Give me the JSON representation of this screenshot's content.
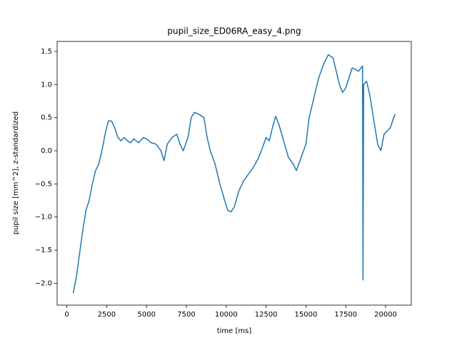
{
  "chart_data": {
    "type": "line",
    "title": "pupil_size_ED06RA_easy_4.png",
    "xlabel": "time [ms]",
    "ylabel": "pupil size [mm^2], z-standardized",
    "x": [
      400,
      600,
      800,
      1000,
      1200,
      1400,
      1600,
      1800,
      2000,
      2200,
      2400,
      2600,
      2800,
      3000,
      3200,
      3400,
      3600,
      3800,
      4000,
      4200,
      4500,
      4800,
      5000,
      5300,
      5600,
      5900,
      6100,
      6300,
      6600,
      6900,
      7100,
      7300,
      7600,
      7800,
      8000,
      8300,
      8600,
      8800,
      9000,
      9300,
      9600,
      9900,
      10100,
      10300,
      10500,
      10800,
      11100,
      11400,
      11700,
      12000,
      12200,
      12500,
      12700,
      12900,
      13100,
      13300,
      13600,
      13900,
      14200,
      14400,
      14700,
      15000,
      15200,
      15500,
      15800,
      16100,
      16400,
      16700,
      16900,
      17100,
      17300,
      17500,
      17700,
      17900,
      18100,
      18300,
      18550,
      18580,
      18620,
      18800,
      19000,
      19300,
      19500,
      19700,
      19900,
      20100,
      20300,
      20500,
      20600
    ],
    "series": [
      {
        "name": "pupil size",
        "color": "#1f77b4",
        "values": [
          -2.15,
          -1.9,
          -1.55,
          -1.2,
          -0.9,
          -0.75,
          -0.5,
          -0.3,
          -0.2,
          0.0,
          0.25,
          0.45,
          0.45,
          0.35,
          0.2,
          0.15,
          0.2,
          0.15,
          0.12,
          0.18,
          0.12,
          0.2,
          0.18,
          0.12,
          0.1,
          0.0,
          -0.15,
          0.1,
          0.2,
          0.25,
          0.1,
          0.0,
          0.2,
          0.5,
          0.58,
          0.55,
          0.5,
          0.2,
          0.0,
          -0.2,
          -0.5,
          -0.75,
          -0.9,
          -0.92,
          -0.85,
          -0.6,
          -0.45,
          -0.35,
          -0.25,
          -0.12,
          0.0,
          0.2,
          0.15,
          0.35,
          0.52,
          0.4,
          0.15,
          -0.1,
          -0.2,
          -0.3,
          -0.1,
          0.1,
          0.5,
          0.8,
          1.1,
          1.3,
          1.45,
          1.4,
          1.2,
          1.0,
          0.88,
          0.95,
          1.1,
          1.25,
          1.23,
          1.2,
          1.28,
          -1.95,
          1.0,
          1.05,
          0.85,
          0.4,
          0.1,
          0.0,
          0.25,
          0.3,
          0.35,
          0.5,
          0.55
        ]
      }
    ],
    "xlim": [
      -610,
      21610
    ],
    "ylim": [
      -2.33,
      1.65
    ],
    "xticks": [
      0,
      2500,
      5000,
      7500,
      10000,
      12500,
      15000,
      17500,
      20000
    ],
    "yticks": [
      {
        "value": -2.0,
        "label": "−2.0"
      },
      {
        "value": -1.5,
        "label": "−1.5"
      },
      {
        "value": -1.0,
        "label": "−1.0"
      },
      {
        "value": -0.5,
        "label": "−0.5"
      },
      {
        "value": 0.0,
        "label": "0.0"
      },
      0.5,
      {
        "value": 1.0,
        "label": "1.0"
      },
      1.5
    ],
    "grid": false
  }
}
